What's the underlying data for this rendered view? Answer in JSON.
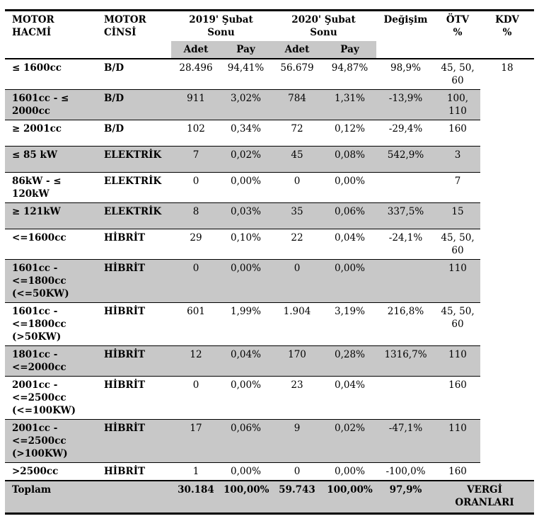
{
  "colors": {
    "row_shade": "#c8c8c8",
    "border": "#000000",
    "page_background": "#ffffff"
  },
  "table": {
    "header": {
      "motor_hacmi": "MOTOR\nHACMİ",
      "motor_cinsi": "MOTOR\nCİNSİ",
      "group_2019": "2019' Şubat\nSonu",
      "group_2020": "2020' Şubat\nSonu",
      "degisim": "Değişim",
      "otv": "ÖTV\n%",
      "kdv": "KDV\n%",
      "adet": "Adet",
      "pay": "Pay"
    },
    "rows": [
      {
        "hacim": "≤ 1600cc",
        "cins": "B/D",
        "adet19": "28.496",
        "pay19": "94,41%",
        "adet20": "56.679",
        "pay20": "94,87%",
        "degisim": "98,9%",
        "otv": "45, 50,\n60",
        "kdv": "18"
      },
      {
        "hacim": "1601cc - ≤\n2000cc",
        "cins": "B/D",
        "adet19": "911",
        "pay19": "3,02%",
        "adet20": "784",
        "pay20": "1,31%",
        "degisim": "-13,9%",
        "otv": "100,\n110",
        "kdv": ""
      },
      {
        "hacim": "≥ 2001cc",
        "cins": "B/D",
        "adet19": "102",
        "pay19": "0,34%",
        "adet20": "72",
        "pay20": "0,12%",
        "degisim": "-29,4%",
        "otv": "160",
        "kdv": ""
      },
      {
        "hacim": "≤ 85 kW",
        "cins": "ELEKTRİK",
        "adet19": "7",
        "pay19": "0,02%",
        "adet20": "45",
        "pay20": "0,08%",
        "degisim": "542,9%",
        "otv": "3",
        "kdv": ""
      },
      {
        "hacim": "86kW - ≤\n120kW",
        "cins": "ELEKTRİK",
        "adet19": "0",
        "pay19": "0,00%",
        "adet20": "0",
        "pay20": "0,00%",
        "degisim": "",
        "otv": "7",
        "kdv": ""
      },
      {
        "hacim": "≥ 121kW",
        "cins": "ELEKTRİK",
        "adet19": "8",
        "pay19": "0,03%",
        "adet20": "35",
        "pay20": "0,06%",
        "degisim": "337,5%",
        "otv": "15",
        "kdv": ""
      },
      {
        "hacim": "<=1600cc",
        "cins": "HİBRİT",
        "adet19": "29",
        "pay19": "0,10%",
        "adet20": "22",
        "pay20": "0,04%",
        "degisim": "-24,1%",
        "otv": "45, 50,\n60",
        "kdv": ""
      },
      {
        "hacim": "1601cc -\n<=1800cc\n(<=50KW)",
        "cins": "HİBRİT",
        "adet19": "0",
        "pay19": "0,00%",
        "adet20": "0",
        "pay20": "0,00%",
        "degisim": "",
        "otv": "110",
        "kdv": ""
      },
      {
        "hacim": "1601cc -\n<=1800cc\n(>50KW)",
        "cins": "HİBRİT",
        "adet19": "601",
        "pay19": "1,99%",
        "adet20": "1.904",
        "pay20": "3,19%",
        "degisim": "216,8%",
        "otv": "45, 50,\n60",
        "kdv": ""
      },
      {
        "hacim": "1801cc -\n<=2000cc",
        "cins": "HİBRİT",
        "adet19": "12",
        "pay19": "0,04%",
        "adet20": "170",
        "pay20": "0,28%",
        "degisim": "1316,7%",
        "otv": "110",
        "kdv": ""
      },
      {
        "hacim": "2001cc -\n<=2500cc\n(<=100KW)",
        "cins": "HİBRİT",
        "adet19": "0",
        "pay19": "0,00%",
        "adet20": "23",
        "pay20": "0,04%",
        "degisim": "",
        "otv": "160",
        "kdv": ""
      },
      {
        "hacim": "2001cc -\n<=2500cc\n(>100KW)",
        "cins": "HİBRİT",
        "adet19": "17",
        "pay19": "0,06%",
        "adet20": "9",
        "pay20": "0,02%",
        "degisim": "-47,1%",
        "otv": "110",
        "kdv": ""
      },
      {
        "hacim": ">2500cc",
        "cins": "HİBRİT",
        "adet19": "1",
        "pay19": "0,00%",
        "adet20": "0",
        "pay20": "0,00%",
        "degisim": "-100,0%",
        "otv": "160",
        "kdv": ""
      }
    ],
    "total": {
      "label": "Toplam",
      "adet19": "30.184",
      "pay19": "100,00%",
      "adet20": "59.743",
      "pay20": "100,00%",
      "degisim": "97,9%",
      "vergi": "VERGİ\nORANLARI"
    }
  }
}
